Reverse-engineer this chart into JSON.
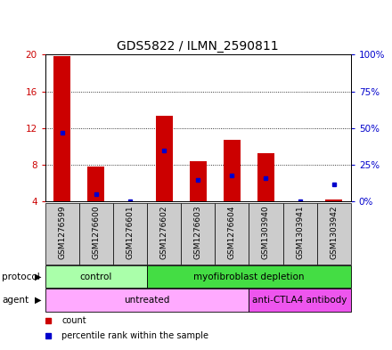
{
  "title": "GDS5822 / ILMN_2590811",
  "samples": [
    "GSM1276599",
    "GSM1276600",
    "GSM1276601",
    "GSM1276602",
    "GSM1276603",
    "GSM1276604",
    "GSM1303940",
    "GSM1303941",
    "GSM1303942"
  ],
  "count_values": [
    19.8,
    7.8,
    4.05,
    13.3,
    8.4,
    10.7,
    9.3,
    4.05,
    4.2
  ],
  "percentile_values": [
    47,
    5,
    0.5,
    35,
    15,
    18,
    16,
    0.5,
    12
  ],
  "ylim_left": [
    4,
    20
  ],
  "ylim_right": [
    0,
    100
  ],
  "yticks_left": [
    4,
    8,
    12,
    16,
    20
  ],
  "yticks_right": [
    0,
    25,
    50,
    75,
    100
  ],
  "ytick_labels_right": [
    "0%",
    "25%",
    "50%",
    "75%",
    "100%"
  ],
  "bar_color": "#cc0000",
  "dot_color": "#0000cc",
  "bar_width": 0.5,
  "protocol_groups": [
    {
      "label": "control",
      "start": 0,
      "end": 3,
      "color": "#aaffaa"
    },
    {
      "label": "myofibroblast depletion",
      "start": 3,
      "end": 9,
      "color": "#44dd44"
    }
  ],
  "agent_groups": [
    {
      "label": "untreated",
      "start": 0,
      "end": 6,
      "color": "#ffaaff"
    },
    {
      "label": "anti-CTLA4 antibody",
      "start": 6,
      "end": 9,
      "color": "#ee55ee"
    }
  ],
  "left_color": "#cc0000",
  "right_color": "#0000cc",
  "grid_color": "#000000",
  "sample_area_color": "#cccccc",
  "title_fontsize": 10,
  "tick_fontsize": 7.5,
  "sample_fontsize": 6.5,
  "row_fontsize": 7.5,
  "legend_fontsize": 7
}
